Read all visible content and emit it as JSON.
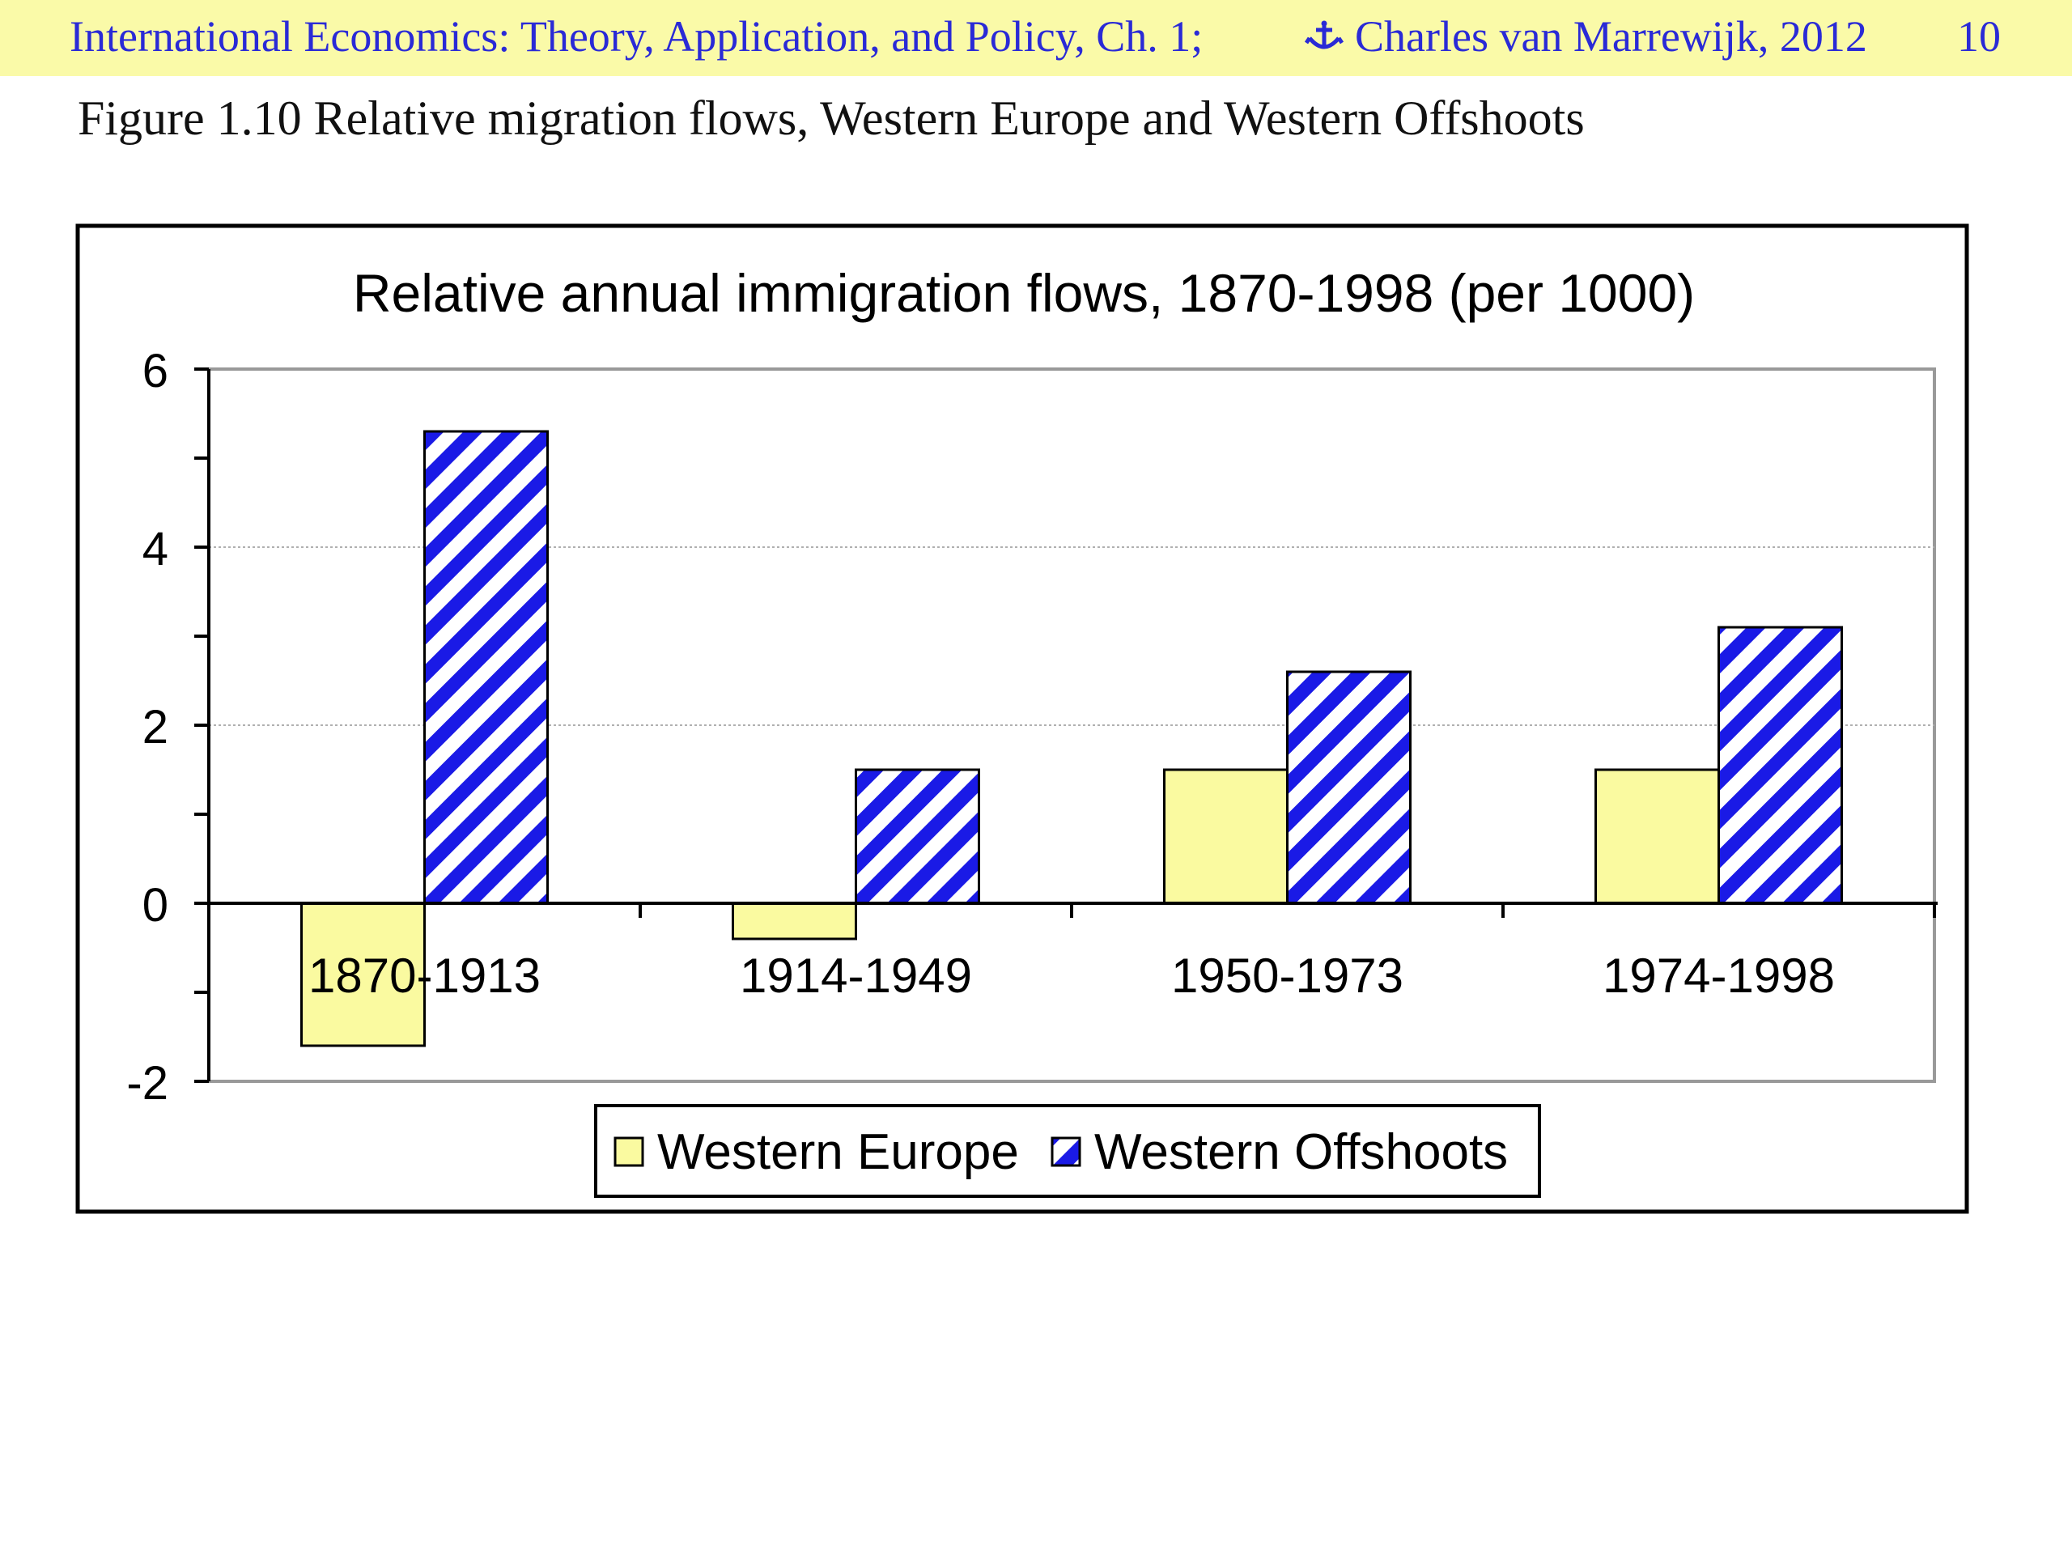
{
  "header": {
    "course": "International Economics: Theory, Application, and Policy, Ch. 1;",
    "author": "Charles van Marrewijk, 2012",
    "page_number": "10",
    "icon": "anchor-icon",
    "background_color": "#fafaa8",
    "text_color": "#2a2ad6"
  },
  "figure": {
    "caption": "Figure 1.10 Relative migration flows, Western Europe and Western Offshoots"
  },
  "chart_data": {
    "type": "bar",
    "title": "Relative annual immigration flows, 1870-1998 (per 1000)",
    "categories": [
      "1870-1913",
      "1914-1949",
      "1950-1973",
      "1974-1998"
    ],
    "series": [
      {
        "name": "Western Europe",
        "values": [
          -1.6,
          -0.4,
          1.5,
          1.5
        ],
        "color": "#fafaa0",
        "pattern": "solid"
      },
      {
        "name": "Western Offshoots",
        "values": [
          5.3,
          1.5,
          2.6,
          3.1
        ],
        "color": "#1a1ae6",
        "pattern": "diagonal-stripes"
      }
    ],
    "xlabel": "",
    "ylabel": "",
    "ylim": [
      -2,
      6
    ],
    "yticks": [
      "-2",
      "0",
      "2",
      "4",
      "6"
    ],
    "grid": true,
    "legend_position": "bottom"
  }
}
